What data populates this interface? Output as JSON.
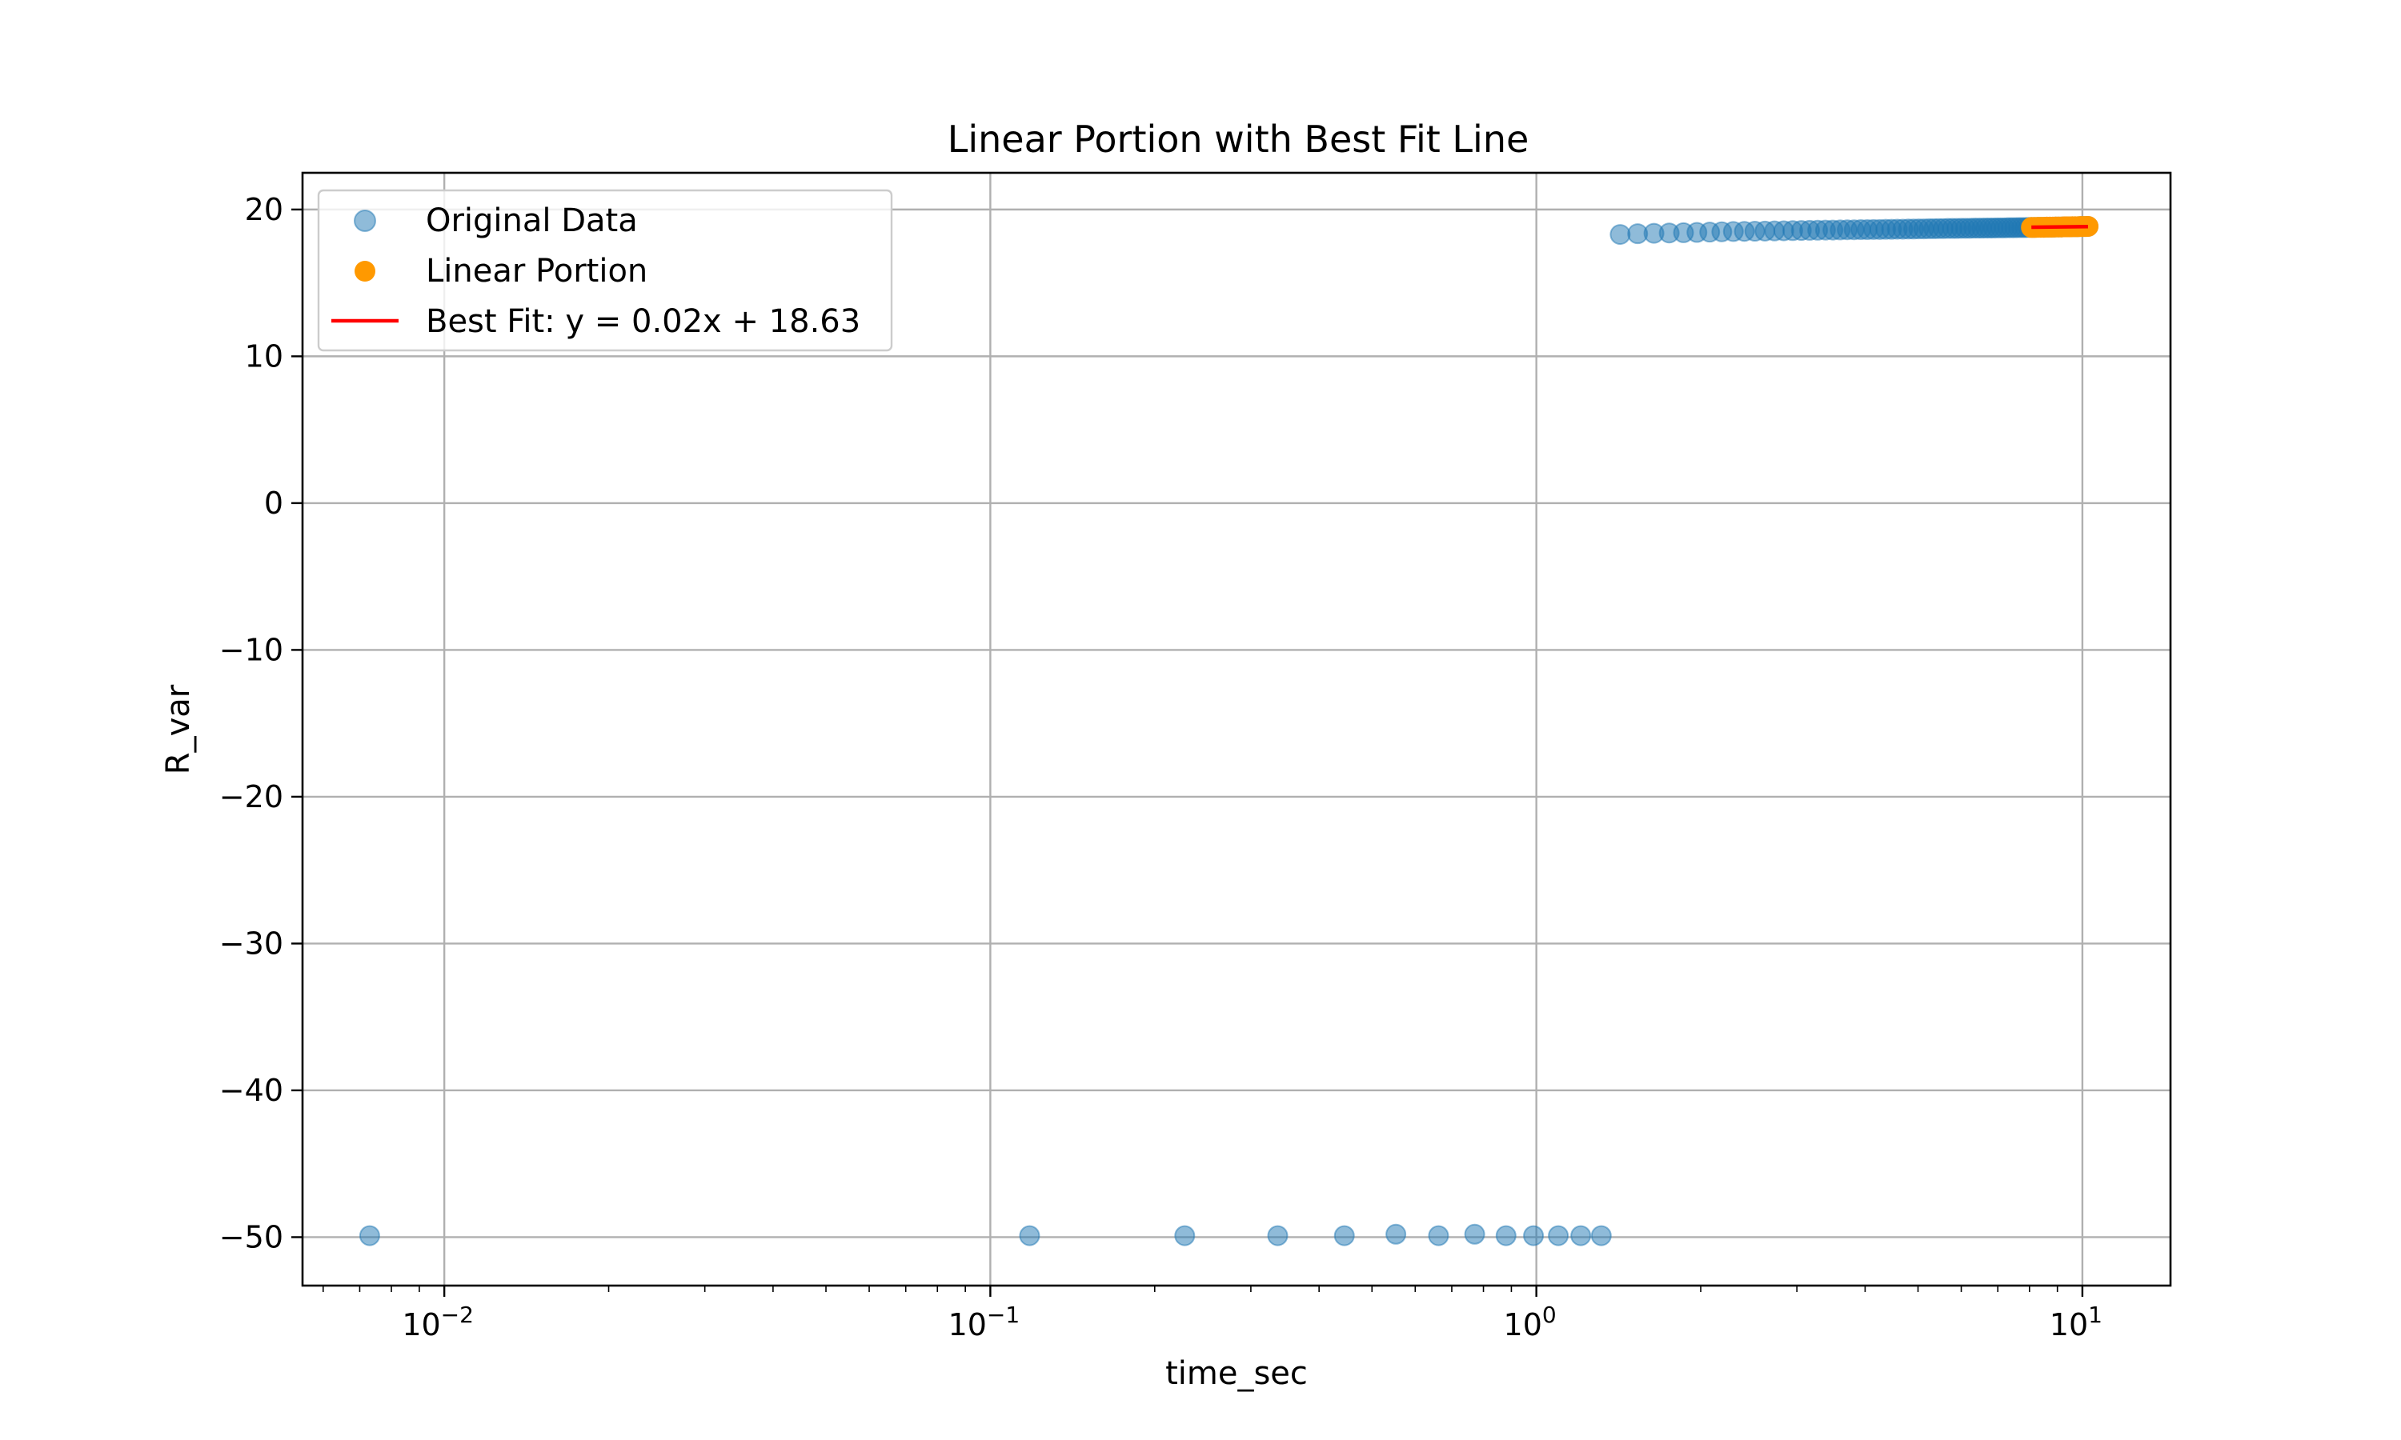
{
  "chart_data": {
    "type": "scatter",
    "title": "Linear Portion with Best Fit Line",
    "xlabel": "time_sec",
    "ylabel": "R_var",
    "xscale": "log",
    "xlim": [
      0.0055,
      14.5
    ],
    "ylim": [
      -53.3,
      22.5
    ],
    "grid": true,
    "legend_position": "top-left",
    "x_ticks": [
      {
        "value": 0.01,
        "base": "10",
        "exp": "−2"
      },
      {
        "value": 0.1,
        "base": "10",
        "exp": "−1"
      },
      {
        "value": 1,
        "base": "10",
        "exp": "0"
      },
      {
        "value": 10,
        "base": "10",
        "exp": "1"
      }
    ],
    "y_ticks": [
      {
        "value": 20,
        "label": "20"
      },
      {
        "value": 10,
        "label": "10"
      },
      {
        "value": 0,
        "label": "0"
      },
      {
        "value": -10,
        "label": "−10"
      },
      {
        "value": -20,
        "label": "−20"
      },
      {
        "value": -30,
        "label": "−30"
      },
      {
        "value": -40,
        "label": "−40"
      },
      {
        "value": -50,
        "label": "−50"
      }
    ],
    "series": [
      {
        "name": "Original Data",
        "kind": "scatter",
        "color": "#1f77b4",
        "alpha": 0.5,
        "points": [
          [
            0.0073,
            -49.9
          ],
          [
            0.118,
            -49.9
          ],
          [
            0.227,
            -49.9
          ],
          [
            0.336,
            -49.9
          ],
          [
            0.445,
            -49.9
          ],
          [
            0.553,
            -49.8
          ],
          [
            0.662,
            -49.9
          ],
          [
            0.771,
            -49.8
          ],
          [
            0.88,
            -49.9
          ],
          [
            0.988,
            -49.9
          ],
          [
            1.097,
            -49.9
          ],
          [
            1.206,
            -49.9
          ],
          [
            1.315,
            -49.9
          ],
          [
            1.424,
            18.3
          ],
          [
            1.533,
            18.35
          ],
          [
            1.642,
            18.38
          ],
          [
            1.751,
            18.4
          ],
          [
            1.86,
            18.42
          ],
          [
            1.968,
            18.44
          ],
          [
            2.077,
            18.46
          ],
          [
            2.186,
            18.48
          ],
          [
            2.295,
            18.5
          ],
          [
            2.404,
            18.51
          ],
          [
            2.513,
            18.52
          ],
          [
            2.622,
            18.53
          ],
          [
            2.73,
            18.54
          ],
          [
            2.839,
            18.55
          ],
          [
            2.948,
            18.56
          ],
          [
            3.057,
            18.57
          ],
          [
            3.166,
            18.58
          ],
          [
            3.275,
            18.59
          ],
          [
            3.384,
            18.6
          ],
          [
            3.492,
            18.6
          ],
          [
            3.601,
            18.61
          ],
          [
            3.71,
            18.62
          ],
          [
            3.819,
            18.62
          ],
          [
            3.928,
            18.63
          ],
          [
            4.037,
            18.63
          ],
          [
            4.146,
            18.64
          ],
          [
            4.255,
            18.64
          ],
          [
            4.363,
            18.65
          ],
          [
            4.472,
            18.65
          ],
          [
            4.581,
            18.66
          ],
          [
            4.69,
            18.66
          ],
          [
            4.799,
            18.67
          ],
          [
            4.908,
            18.67
          ],
          [
            5.017,
            18.68
          ],
          [
            5.125,
            18.68
          ],
          [
            5.234,
            18.69
          ],
          [
            5.343,
            18.69
          ],
          [
            5.452,
            18.7
          ],
          [
            5.561,
            18.7
          ],
          [
            5.67,
            18.71
          ],
          [
            5.779,
            18.71
          ],
          [
            5.887,
            18.71
          ],
          [
            5.996,
            18.72
          ],
          [
            6.105,
            18.72
          ],
          [
            6.214,
            18.72
          ],
          [
            6.323,
            18.73
          ],
          [
            6.432,
            18.73
          ],
          [
            6.541,
            18.73
          ],
          [
            6.65,
            18.74
          ],
          [
            6.758,
            18.74
          ],
          [
            6.867,
            18.74
          ],
          [
            6.976,
            18.75
          ],
          [
            7.085,
            18.75
          ],
          [
            7.194,
            18.75
          ],
          [
            7.303,
            18.76
          ],
          [
            7.412,
            18.76
          ],
          [
            7.52,
            18.76
          ],
          [
            7.629,
            18.77
          ],
          [
            7.738,
            18.77
          ],
          [
            7.847,
            18.77
          ],
          [
            7.956,
            18.78
          ],
          [
            8.065,
            18.78
          ],
          [
            8.174,
            18.78
          ],
          [
            8.282,
            18.79
          ],
          [
            8.391,
            18.79
          ],
          [
            8.5,
            18.79
          ],
          [
            8.609,
            18.8
          ],
          [
            8.718,
            18.8
          ],
          [
            8.827,
            18.8
          ],
          [
            8.936,
            18.81
          ],
          [
            9.045,
            18.81
          ],
          [
            9.153,
            18.81
          ],
          [
            9.262,
            18.82
          ],
          [
            9.371,
            18.82
          ],
          [
            9.48,
            18.82
          ],
          [
            9.589,
            18.83
          ],
          [
            9.698,
            18.83
          ],
          [
            9.807,
            18.83
          ],
          [
            9.915,
            18.84
          ],
          [
            10.024,
            18.84
          ],
          [
            10.133,
            18.84
          ],
          [
            10.242,
            18.85
          ]
        ]
      },
      {
        "name": "Linear Portion",
        "kind": "scatter",
        "color": "#ff9900",
        "alpha": 1.0,
        "points": [
          [
            8.065,
            18.78
          ],
          [
            8.174,
            18.78
          ],
          [
            8.282,
            18.79
          ],
          [
            8.391,
            18.79
          ],
          [
            8.5,
            18.79
          ],
          [
            8.609,
            18.8
          ],
          [
            8.718,
            18.8
          ],
          [
            8.827,
            18.8
          ],
          [
            8.936,
            18.81
          ],
          [
            9.045,
            18.81
          ],
          [
            9.153,
            18.81
          ],
          [
            9.262,
            18.82
          ],
          [
            9.371,
            18.82
          ],
          [
            9.48,
            18.82
          ],
          [
            9.589,
            18.83
          ],
          [
            9.698,
            18.83
          ],
          [
            9.807,
            18.83
          ],
          [
            9.915,
            18.84
          ],
          [
            10.024,
            18.84
          ],
          [
            10.133,
            18.84
          ],
          [
            10.242,
            18.85
          ]
        ]
      },
      {
        "name": "Best Fit: y = 0.02x + 18.63",
        "kind": "line",
        "color": "#ff0000",
        "slope": 0.02,
        "intercept": 18.63,
        "x_range": [
          8.065,
          10.242
        ]
      }
    ]
  }
}
